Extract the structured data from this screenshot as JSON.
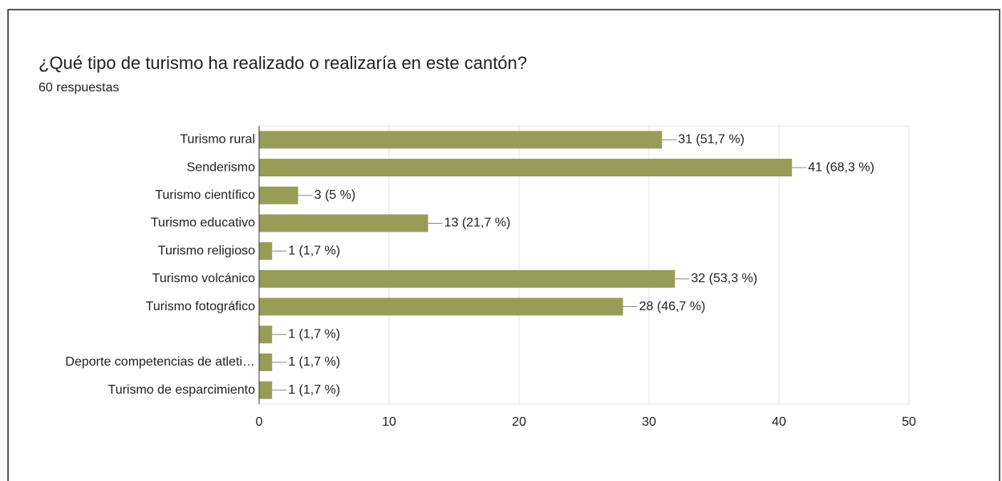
{
  "chart_data": {
    "type": "bar",
    "orientation": "horizontal",
    "title": "¿Qué tipo de turismo ha realizado o realizaría en este cantón?",
    "subtitle": "60 respuestas",
    "categories": [
      "Turismo rural",
      "Senderismo",
      "Turismo científico",
      "Turismo educativo",
      "Turismo religioso",
      "Turismo volcánico",
      "Turismo fotográfico",
      null,
      "Deporte competencias de atleti…",
      "Turismo de esparcimiento"
    ],
    "values": [
      31,
      41,
      3,
      13,
      1,
      32,
      28,
      1,
      1,
      1
    ],
    "value_labels": [
      "31 (51,7 %)",
      "41 (68,3 %)",
      "3 (5 %)",
      "13 (21,7 %)",
      "1 (1,7 %)",
      "32 (53,3 %)",
      "28 (46,7 %)",
      "1 (1,7 %)",
      "1 (1,7 %)",
      "1 (1,7 %)"
    ],
    "color": "#979d57",
    "xlim": [
      0,
      50
    ],
    "xticks": [
      0,
      10,
      20,
      30,
      40,
      50
    ],
    "grid": true
  }
}
